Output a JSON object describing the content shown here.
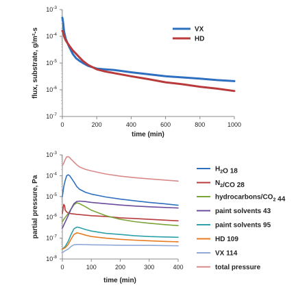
{
  "chart_data": [
    {
      "type": "line",
      "xlabel": "time (min)",
      "ylabel": "flux, substrate, g/m²-s",
      "xlim": [
        0,
        1000
      ],
      "ylim_log10": [
        -7,
        -3
      ],
      "y_scale": "log",
      "x_ticks": [
        "0",
        "200",
        "400",
        "600",
        "800",
        "1000"
      ],
      "y_ticks": [
        {
          "base": "10",
          "exp": "-7"
        },
        {
          "base": "10",
          "exp": "-6"
        },
        {
          "base": "10",
          "exp": "-5"
        },
        {
          "base": "10",
          "exp": "-4"
        },
        {
          "base": "10",
          "exp": "-3"
        }
      ],
      "grid": false,
      "legend_position": "top-right",
      "series": [
        {
          "name": "VX",
          "color": "#2e6fbf",
          "x": [
            0,
            5,
            10,
            20,
            40,
            60,
            80,
            100,
            120,
            150,
            200,
            250,
            300,
            400,
            500,
            600,
            700,
            800,
            900,
            1000
          ],
          "y": [
            0.0005,
            0.0003,
            0.00015,
            8e-05,
            4e-05,
            2.2e-05,
            1.5e-05,
            1.2e-05,
            1e-05,
            7.8e-06,
            6.2e-06,
            5.8e-06,
            5.5e-06,
            4.5e-06,
            3.8e-06,
            3.2e-06,
            2.9e-06,
            2.6e-06,
            2.3e-06,
            2.1e-06
          ]
        },
        {
          "name": "HD",
          "color": "#b83a3a",
          "x": [
            0,
            5,
            10,
            20,
            40,
            60,
            80,
            100,
            120,
            150,
            200,
            250,
            300,
            400,
            500,
            600,
            700,
            800,
            900,
            1000
          ],
          "y": [
            0.00016,
            0.00014,
            0.0001,
            7e-05,
            4.5e-05,
            3e-05,
            2.2e-05,
            1.6e-05,
            1.2e-05,
            8.5e-06,
            5.8e-06,
            4.8e-06,
            4.2e-06,
            3.2e-06,
            2.5e-06,
            1.9e-06,
            1.6e-06,
            1.3e-06,
            1.1e-06,
            9e-07
          ]
        }
      ]
    },
    {
      "type": "line",
      "xlabel": "time (min)",
      "ylabel": "partial pressure, Pa",
      "xlim": [
        0,
        400
      ],
      "ylim_log10": [
        -8,
        -3
      ],
      "y_scale": "log",
      "x_ticks": [
        "0",
        "100",
        "200",
        "300",
        "400"
      ],
      "y_ticks": [
        {
          "base": "10",
          "exp": "-8"
        },
        {
          "base": "10",
          "exp": "-7"
        },
        {
          "base": "10",
          "exp": "-6"
        },
        {
          "base": "10",
          "exp": "-5"
        },
        {
          "base": "10",
          "exp": "-4"
        },
        {
          "base": "10",
          "exp": "-3"
        }
      ],
      "grid": false,
      "legend_position": "right",
      "series": [
        {
          "name_parts": [
            {
              "t": "H"
            },
            {
              "t": "2",
              "sub": true
            },
            {
              "t": "O 18"
            }
          ],
          "color": "#2e6fbf",
          "x": [
            0,
            5,
            10,
            15,
            20,
            25,
            30,
            40,
            50,
            60,
            80,
            100,
            150,
            200,
            250,
            300,
            350,
            400
          ],
          "y": [
            1e-05,
            3e-05,
            6e-05,
            0.0001,
            0.00011,
            0.0001,
            8e-05,
            5e-05,
            3e-05,
            2.2e-05,
            1.6e-05,
            1.3e-05,
            9.5e-06,
            7.5e-06,
            6.2e-06,
            5.2e-06,
            4.5e-06,
            3.8e-06
          ]
        },
        {
          "name_parts": [
            {
              "t": "N"
            },
            {
              "t": "2",
              "sub": true
            },
            {
              "t": "/CO 28"
            }
          ],
          "color": "#b83a3a",
          "x": [
            0,
            3,
            5,
            8,
            10,
            15,
            20,
            30,
            50,
            100,
            150,
            200,
            250,
            300,
            350,
            400
          ],
          "y": [
            1.5e-06,
            3e-06,
            4.2e-06,
            3.5e-06,
            2.2e-06,
            1.8e-06,
            1.6e-06,
            1.5e-06,
            1.4e-06,
            1.2e-06,
            1.1e-06,
            9.5e-07,
            8.8e-07,
            8e-07,
            7.4e-07,
            6.8e-07
          ]
        },
        {
          "name_parts": [
            {
              "t": "hydrocarbons/CO"
            },
            {
              "t": "2",
              "sub": true
            },
            {
              "t": " 44"
            }
          ],
          "color": "#7aa33a",
          "x": [
            0,
            5,
            10,
            20,
            30,
            40,
            50,
            60,
            80,
            100,
            150,
            200,
            250,
            300,
            350,
            400
          ],
          "y": [
            6e-07,
            8e-07,
            1e-06,
            1.5e-06,
            2.5e-06,
            4e-06,
            5e-06,
            4.5e-06,
            3.2e-06,
            2.2e-06,
            1.2e-06,
            8e-07,
            6.2e-07,
            5.2e-07,
            4.5e-07,
            4e-07
          ]
        },
        {
          "name_parts": [
            {
              "t": "paint solvents 43"
            }
          ],
          "color": "#6a4a9c",
          "x": [
            0,
            10,
            20,
            30,
            40,
            50,
            60,
            80,
            100,
            150,
            200,
            250,
            300,
            350,
            400
          ],
          "y": [
            3e-07,
            6e-07,
            1.2e-06,
            2.5e-06,
            4.5e-06,
            5.8e-06,
            6e-06,
            5.7e-06,
            5.2e-06,
            4.5e-06,
            3.9e-06,
            3.5e-06,
            3.2e-06,
            3e-06,
            2.8e-06
          ]
        },
        {
          "name_parts": [
            {
              "t": "paint solvents 95"
            }
          ],
          "color": "#2aa0a8",
          "x": [
            0,
            10,
            20,
            30,
            40,
            50,
            60,
            80,
            100,
            150,
            200,
            250,
            300,
            350,
            400
          ],
          "y": [
            3e-08,
            4e-08,
            7e-08,
            1.5e-07,
            2.8e-07,
            3.4e-07,
            3.2e-07,
            2.6e-07,
            2.2e-07,
            1.7e-07,
            1.5e-07,
            1.3e-07,
            1.2e-07,
            1.15e-07,
            1.1e-07
          ]
        },
        {
          "name_parts": [
            {
              "t": "HD 109"
            }
          ],
          "color": "#e87a1f",
          "x": [
            0,
            10,
            20,
            30,
            40,
            50,
            60,
            80,
            100,
            150,
            200,
            250,
            300,
            350,
            400
          ],
          "y": [
            3e-08,
            3.5e-08,
            5e-08,
            9e-08,
            1.5e-07,
            1.8e-07,
            1.7e-07,
            1.4e-07,
            1.2e-07,
            1e-07,
            8.8e-08,
            8e-08,
            7.5e-08,
            7e-08,
            6.7e-08
          ]
        },
        {
          "name_parts": [
            {
              "t": "VX 114"
            }
          ],
          "color": "#8fa8d8",
          "x": [
            0,
            10,
            20,
            30,
            40,
            50,
            60,
            80,
            100,
            150,
            200,
            250,
            300,
            350,
            400
          ],
          "y": [
            2e-08,
            2.5e-08,
            3e-08,
            4e-08,
            4.8e-08,
            5e-08,
            5e-08,
            4.9e-08,
            4.8e-08,
            4.7e-08,
            4.6e-08,
            4.5e-08,
            4.5e-08,
            4.4e-08,
            4.3e-08
          ]
        },
        {
          "name_parts": [
            {
              "t": "total pressure"
            }
          ],
          "color": "#d88a8a",
          "x": [
            0,
            5,
            10,
            15,
            20,
            25,
            30,
            40,
            50,
            60,
            80,
            100,
            150,
            200,
            250,
            300,
            350,
            400
          ],
          "y": [
            0.0003,
            0.0004,
            0.0006,
            0.0008,
            0.00082,
            0.00075,
            0.00062,
            0.00045,
            0.00033,
            0.00026,
            0.0002,
            0.00017,
            0.00012,
            9.5e-05,
            8e-05,
            7e-05,
            6.2e-05,
            5.5e-05
          ]
        }
      ]
    }
  ]
}
